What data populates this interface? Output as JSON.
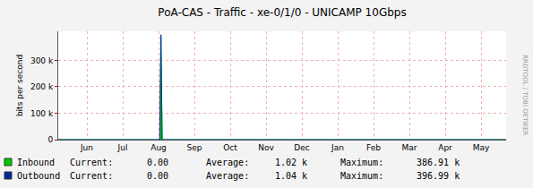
{
  "chart_data": {
    "type": "line",
    "title": "PoA-CAS - Traffic - xe-0/1/0 - UNICAMP 10Gbps",
    "y_label": "bits per second",
    "side_note": "RRDTOOL / TOBI OETIKER",
    "x": [
      0,
      85,
      86,
      87,
      375
    ],
    "xlim": [
      0,
      375
    ],
    "xticks": [
      {
        "value": 24,
        "label": "Jun"
      },
      {
        "value": 54,
        "label": "Jul"
      },
      {
        "value": 84,
        "label": "Aug"
      },
      {
        "value": 114,
        "label": "Sep"
      },
      {
        "value": 144,
        "label": "Oct"
      },
      {
        "value": 174,
        "label": "Nov"
      },
      {
        "value": 204,
        "label": "Dec"
      },
      {
        "value": 234,
        "label": "Jan"
      },
      {
        "value": 264,
        "label": "Feb"
      },
      {
        "value": 294,
        "label": "Mar"
      },
      {
        "value": 324,
        "label": "Apr"
      },
      {
        "value": 354,
        "label": "May"
      }
    ],
    "ylim": [
      0,
      410000
    ],
    "yticks": [
      0,
      {
        "value": 100000,
        "label": "100 k"
      },
      {
        "value": 200000,
        "label": "200 k"
      },
      {
        "value": 300000,
        "label": "300 k"
      }
    ],
    "grid": true,
    "legend_columns": [
      "Current:",
      "Average:",
      "Maximum:"
    ],
    "series": [
      {
        "name": "Inbound",
        "type": "area",
        "color": "#00cc00",
        "values": [
          0,
          0,
          386910,
          0,
          0
        ],
        "stats": [
          "0.00",
          "1.02 k",
          "386.91 k"
        ]
      },
      {
        "name": "Outbound",
        "type": "line",
        "color": "#002a97",
        "values": [
          0,
          0,
          396990,
          0,
          0
        ],
        "stats": [
          "0.00",
          "1.04 k",
          "396.99 k"
        ]
      }
    ]
  }
}
